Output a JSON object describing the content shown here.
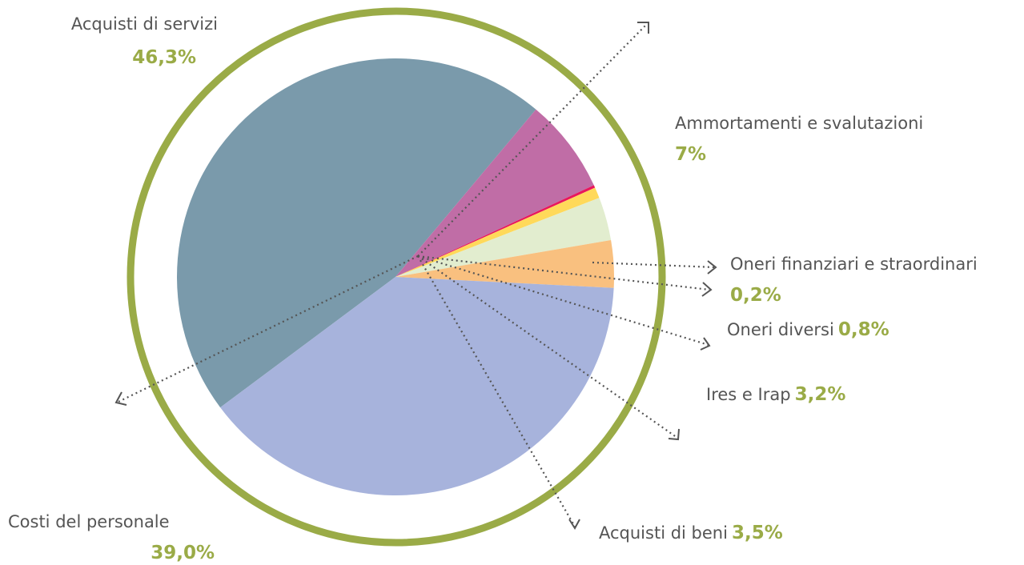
{
  "chart_data": {
    "type": "pie",
    "categories": [
      "Acquisti di servizi",
      "Ammortamenti e svalutazioni",
      "Oneri finanziari e straordinari",
      "Oneri diversi",
      "Ires e Irap",
      "Acquisti di beni",
      "Costi del personale"
    ],
    "values": [
      46.3,
      7,
      0.2,
      0.8,
      3.2,
      3.5,
      39.0
    ],
    "value_labels": [
      "46,3%",
      "7%",
      "0,2%",
      "0,8%",
      "3,2%",
      "3,5%",
      "39,0%"
    ],
    "colors": [
      "#7a9aab",
      "#c06da6",
      "#e8175d",
      "#ffd95a",
      "#e2edcf",
      "#f9c07f",
      "#a7b3dc"
    ]
  }
}
